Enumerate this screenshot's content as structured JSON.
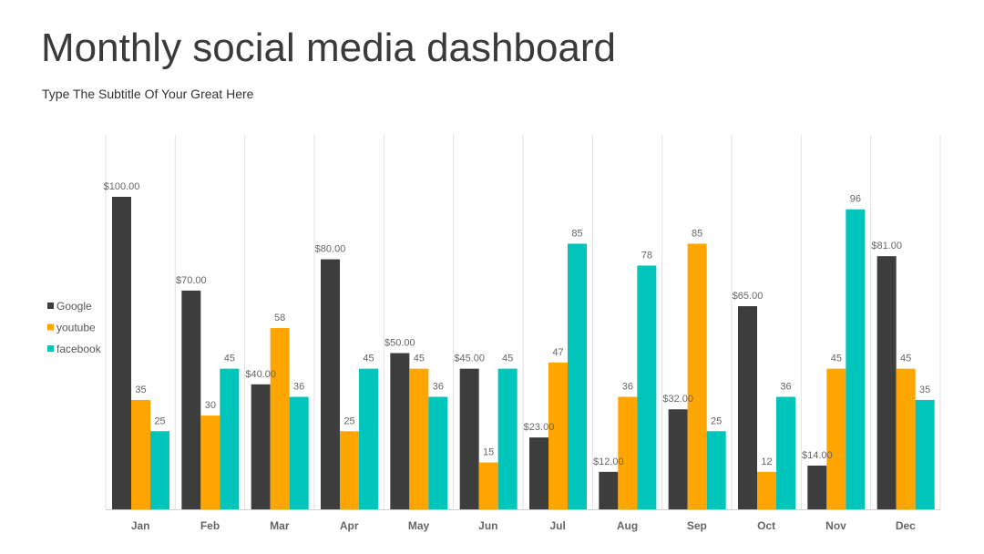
{
  "header": {
    "title": "Monthly social media dashboard",
    "subtitle": "Type The Subtitle Of Your Great Here"
  },
  "chart_data": {
    "type": "bar",
    "categories": [
      "Jan",
      "Feb",
      "Mar",
      "Apr",
      "May",
      "Jun",
      "Jul",
      "Aug",
      "Sep",
      "Oct",
      "Nov",
      "Dec"
    ],
    "series": [
      {
        "name": "Google",
        "color": "#3d3d3d",
        "values": [
          100,
          70,
          40,
          80,
          50,
          45,
          23,
          12,
          32,
          65,
          14,
          81
        ],
        "labels": [
          "$100.00",
          "$70.00",
          "$40.00",
          "$80.00",
          "$50.00",
          "$45.00",
          "$23.00",
          "$12.00",
          "$32.00",
          "$65.00",
          "$14.00",
          "$81.00"
        ]
      },
      {
        "name": "youtube",
        "color": "#ffa500",
        "values": [
          35,
          30,
          58,
          25,
          45,
          15,
          47,
          36,
          85,
          12,
          45,
          45
        ],
        "labels": [
          "35",
          "30",
          "58",
          "25",
          "45",
          "15",
          "47",
          "36",
          "85",
          "12",
          "45",
          "45"
        ]
      },
      {
        "name": "facebook",
        "color": "#00c5bb",
        "values": [
          25,
          45,
          36,
          45,
          36,
          45,
          85,
          78,
          25,
          36,
          96,
          35
        ],
        "labels": [
          "25",
          "45",
          "36",
          "45",
          "36",
          "45",
          "85",
          "78",
          "25",
          "36",
          "96",
          "35"
        ]
      }
    ],
    "ylim": [
      0,
      120
    ],
    "grid": "vertical",
    "legend": "left"
  }
}
